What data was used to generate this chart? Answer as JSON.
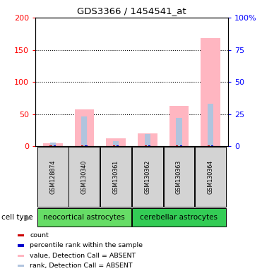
{
  "title": "GDS3366 / 1454541_at",
  "samples": [
    "GSM128874",
    "GSM130340",
    "GSM130361",
    "GSM130362",
    "GSM130363",
    "GSM130364"
  ],
  "groups": [
    {
      "name": "neocortical astrocytes",
      "indices": [
        0,
        1,
        2
      ],
      "color": "#66DD66"
    },
    {
      "name": "cerebellar astrocytes",
      "indices": [
        3,
        4,
        5
      ],
      "color": "#33CC55"
    }
  ],
  "value_absent": [
    5.0,
    57.0,
    12.0,
    20.0,
    63.0,
    168.0
  ],
  "rank_absent": [
    5.5,
    46.0,
    8.0,
    19.5,
    44.0,
    66.0
  ],
  "count_values": [
    1.5,
    1.5,
    1.5,
    1.5,
    1.5,
    1.5
  ],
  "percentile_values": [
    1.5,
    1.5,
    1.5,
    1.5,
    1.5,
    1.5
  ],
  "ylim_left": [
    0,
    200
  ],
  "ylim_right": [
    0,
    100
  ],
  "yticks_left": [
    0,
    50,
    100,
    150,
    200
  ],
  "yticks_right": [
    0,
    25,
    50,
    75,
    100
  ],
  "yticklabels_right": [
    "0",
    "25",
    "50",
    "75",
    "100%"
  ],
  "color_value_absent": "#FFB6C1",
  "color_rank_absent": "#B0C4DE",
  "color_count": "#CC0000",
  "color_percentile": "#0000CC",
  "bg_color": "#D3D3D3",
  "cell_type_label": "cell type"
}
